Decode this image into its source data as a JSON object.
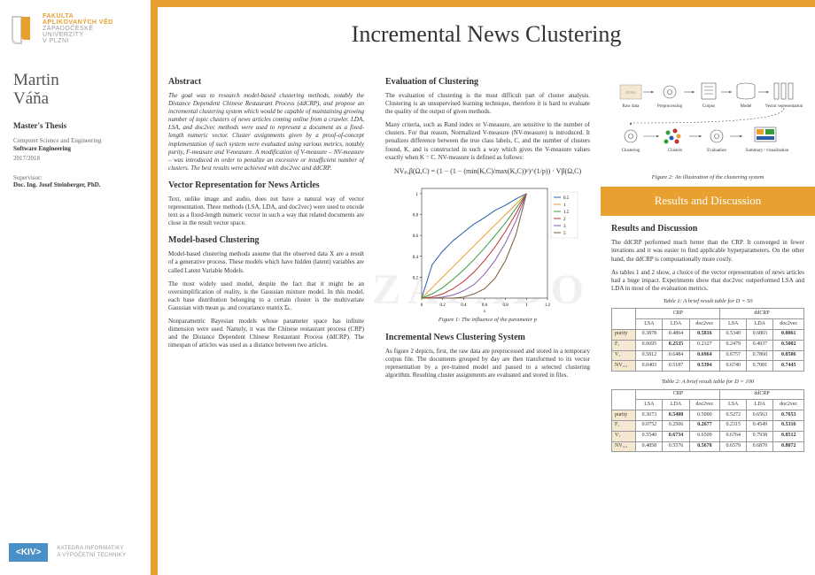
{
  "university": {
    "line1": "FAKULTA",
    "line2": "APLIKOVANÝCH VĚD",
    "line3": "ZÁPADOČESKÉ",
    "line4": "UNIVERZITY",
    "line5": "V PLZNI"
  },
  "author": {
    "first": "Martin",
    "last": "Váňa"
  },
  "thesis_label": "Master's Thesis",
  "dept_line1": "Computer Science and Engineering",
  "dept_line2": "Software Engineering",
  "year": "2017/2018",
  "supervisor_label": "Supervisor:",
  "supervisor_name": "Doc. Ing. Josef Steinberger, PhD.",
  "kiv": {
    "code": "<KIV>",
    "text1": "KATEDRA INFORMATIKY",
    "text2": "A VÝPOČETNÍ TECHNIKY"
  },
  "title": "Incremental News Clustering",
  "watermark": "ZÁPADO",
  "headings": {
    "abstract": "Abstract",
    "vector": "Vector Representation for News Articles",
    "model": "Model-based Clustering",
    "eval": "Evaluation of Clustering",
    "system": "Incremental News Clustering System",
    "results_header": "Results and Discussion",
    "results": "Results and Discussion"
  },
  "text": {
    "abstract": "The goal was to research model-based clustering methods, notably the Distance Dependent Chinese Restaurant Process (ddCRP), and propose an incremental clustering system which would be capable of maintaining growing number of topic clusters of news articles coming online from a crawler. LDA, LSA, and doc2vec methods were used to represent a document as a fixed-length numeric vector. Cluster assignments given by a proof-of-concept implementation of such system were evaluated using various metrics, notably purity, F-measure and V-measure. A modification of V-measure – NV-measure – was introduced in order to penalize an excessive or insufficient number of clusters. The best results were achieved with doc2vec and ddCRP.",
    "vector": "Text, unlike image and audio, does not have a natural way of vector representation. Three methods (LSA, LDA, and doc2vec) were used to encode text as a fixed-length numeric vector in such a way that related documents are close in the result vector space.",
    "model1": "Model-based clustering methods assume that the observed data X are a result of a generative process. These models which have hidden (latent) variables are called Latent Variable Models.",
    "model2": "The most widely used model, despite the fact that it might be an oversimplification of reality, is the Gaussian mixture model. In this model, each base distribution belonging to a certain cluster is the multivariate Gaussian with mean μₖ and covariance matrix Σₖ.",
    "model3": "Nonparametric Bayesian models whose parameter space has infinite dimension were used. Namely, it was the Chinese restaurant process (CRP) and the Distance Dependent Chinese Restaurant Process (ddCRP). The timespan of articles was used as a distance between two articles.",
    "eval1": "The evaluation of clustering is the most difficult part of cluster analysis. Clustering is an unsupervised learning technique, therefore it is hard to evaluate the quality of the output of given methods.",
    "eval2": "Many criteria, such as Rand index or V-measure, are sensitive to the number of clusters. For that reason, Normalized V-measure (NV-measure) is introduced. It penalizes difference between the true class labels, C, and the number of clusters found, K, and is constructed in such a way which gives the V-measure values exactly when K = C. NV-measure is defined as follows:",
    "system": "As figure 2 depicts, first, the raw data are preprocessed and stored in a temporary corpus file. The documents grouped by day are then transformed to its vector representation by a pre-trained model and passed to a selected clustering algorithm. Resulting cluster assignments are evaluated and stored in files.",
    "results1": "The ddCRP performed much better than the CRP. It converged in fewer iterations and it was easier to find applicable hyperparameters. On the other hand, the ddCRP is computationally more costly.",
    "results2": "As tables 1 and 2 show, a choice of the vector representation of news articles had a huge impact. Experiments show that doc2vec outperformed LSA and LDA in most of the evaluation metrics."
  },
  "formula": "NVₚ,β(Ω,C) = (1 − (1 − (min(K,C)/max(K,C))ᵖ)^(1/p)) · Vβ(Ω,C)",
  "fig1": {
    "caption": "Figure 1: The influence of the parameter p",
    "xlim": [
      0,
      1.2
    ],
    "ylim": [
      0,
      1.05
    ],
    "xticks": [
      0,
      0.2,
      0.4,
      0.6,
      0.8,
      1.0,
      1.2
    ],
    "yticks": [
      0.2,
      0.4,
      0.6,
      0.8,
      1.0
    ],
    "legend": [
      "0.5",
      "1",
      "1.5",
      "2",
      "3",
      "5"
    ],
    "colors": [
      "#2a5caa",
      "#e8a030",
      "#3a9b3a",
      "#c03030",
      "#8a5aa8",
      "#7a5a3a"
    ],
    "x": [
      0,
      0.1,
      0.2,
      0.3,
      0.4,
      0.5,
      0.6,
      0.7,
      0.8,
      0.9,
      1.0
    ],
    "series": [
      [
        0,
        0.32,
        0.45,
        0.55,
        0.63,
        0.71,
        0.77,
        0.84,
        0.89,
        0.95,
        1.0
      ],
      [
        0,
        0.1,
        0.2,
        0.3,
        0.4,
        0.5,
        0.6,
        0.7,
        0.8,
        0.9,
        1.0
      ],
      [
        0,
        0.04,
        0.1,
        0.18,
        0.27,
        0.37,
        0.48,
        0.6,
        0.72,
        0.86,
        1.0
      ],
      [
        0,
        0.01,
        0.04,
        0.09,
        0.16,
        0.25,
        0.36,
        0.49,
        0.64,
        0.81,
        1.0
      ],
      [
        0,
        0.0,
        0.01,
        0.03,
        0.07,
        0.13,
        0.23,
        0.36,
        0.53,
        0.74,
        1.0
      ],
      [
        0,
        0.0,
        0.0,
        0.0,
        0.01,
        0.04,
        0.09,
        0.19,
        0.36,
        0.61,
        1.0
      ]
    ]
  },
  "fig2": {
    "caption": "Figure 2: An illustration of the clustering system",
    "labels": [
      "Raw data",
      "Preprocessing",
      "Corpus",
      "Model",
      "Vector representation",
      "Clustering",
      "Clusters",
      "Evaluation",
      "Summary / visualization"
    ]
  },
  "table1": {
    "caption": "Table 1: A brief result table for D = 50",
    "group_headers": [
      "CRP",
      "ddCRP"
    ],
    "col_headers": [
      "LSA",
      "LDA",
      "doc2vec",
      "LSA",
      "LDA",
      "doc2vec"
    ],
    "rows": [
      {
        "label": "purity",
        "vals": [
          "0.3878",
          "0.4864",
          "0.5816",
          "0.5340",
          "0.6803",
          "0.8061"
        ],
        "bold": [
          2,
          5
        ]
      },
      {
        "label": "F₁",
        "vals": [
          "0.0695",
          "0.2535",
          "0.2327",
          "0.2479",
          "0.4937",
          "0.5002"
        ],
        "bold": [
          1,
          5
        ]
      },
      {
        "label": "V₁",
        "vals": [
          "0.5812",
          "0.6484",
          "0.6964",
          "0.6757",
          "0.7860",
          "0.8506"
        ],
        "bold": [
          2,
          5
        ]
      },
      {
        "label": "NV₁,₁",
        "vals": [
          "0.0403",
          "0.5187",
          "0.5394",
          "0.6740",
          "0.7081",
          "0.7445"
        ],
        "bold": [
          2,
          5
        ]
      }
    ]
  },
  "table2": {
    "caption": "Table 2: A brief result table for D = 100",
    "group_headers": [
      "CRP",
      "ddCRP"
    ],
    "col_headers": [
      "LSA",
      "LDA",
      "doc2vec",
      "LSA",
      "LDA",
      "doc2vec"
    ],
    "rows": [
      {
        "label": "purity",
        "vals": [
          "0.3673",
          "0.5408",
          "0.5000",
          "0.5272",
          "0.6563",
          "0.7653"
        ],
        "bold": [
          1,
          5
        ]
      },
      {
        "label": "F₁",
        "vals": [
          "0.0752",
          "0.2506",
          "0.2677",
          "0.2315",
          "0.4549",
          "0.5316"
        ],
        "bold": [
          2,
          5
        ]
      },
      {
        "label": "V₁",
        "vals": [
          "0.5540",
          "0.6734",
          "0.6509",
          "0.6764",
          "0.7938",
          "0.8512"
        ],
        "bold": [
          1,
          5
        ]
      },
      {
        "label": "NV₁,₁",
        "vals": [
          "0.4858",
          "0.5576",
          "0.5678",
          "0.6579",
          "0.6870",
          "0.8072"
        ],
        "bold": [
          2,
          5
        ]
      }
    ]
  },
  "colors": {
    "orange": "#e8a030",
    "blue": "#4a8fc5",
    "gray": "#999"
  }
}
